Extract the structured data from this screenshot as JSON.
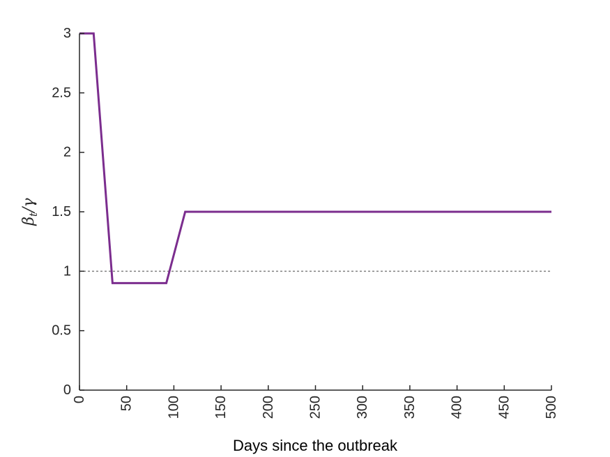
{
  "chart_data": {
    "type": "line",
    "title": "",
    "xlabel": "Days since the outbreak",
    "ylabel": "β_t/γ",
    "ylabel_parts": {
      "main": "β",
      "sub": "t",
      "rest": "/γ"
    },
    "xlim": [
      0,
      500
    ],
    "ylim": [
      0,
      3
    ],
    "xticks": [
      0,
      50,
      100,
      150,
      200,
      250,
      300,
      350,
      400,
      450,
      500
    ],
    "yticks": [
      0,
      0.5,
      1,
      1.5,
      2,
      2.5,
      3
    ],
    "xtick_labels": [
      "0",
      "50",
      "100",
      "150",
      "200",
      "250",
      "300",
      "350",
      "400",
      "450",
      "500"
    ],
    "ytick_labels": [
      "0",
      "0.5",
      "1",
      "1.5",
      "2",
      "2.5",
      "3"
    ],
    "grid": false,
    "series": [
      {
        "color": "#7B2D8E",
        "x": [
          0,
          15,
          35,
          92,
          112,
          500
        ],
        "y": [
          3,
          3,
          0.9,
          0.9,
          1.5,
          1.5
        ]
      }
    ],
    "reference_line": {
      "y": 1,
      "style": "dotted",
      "color": "#808080"
    }
  }
}
